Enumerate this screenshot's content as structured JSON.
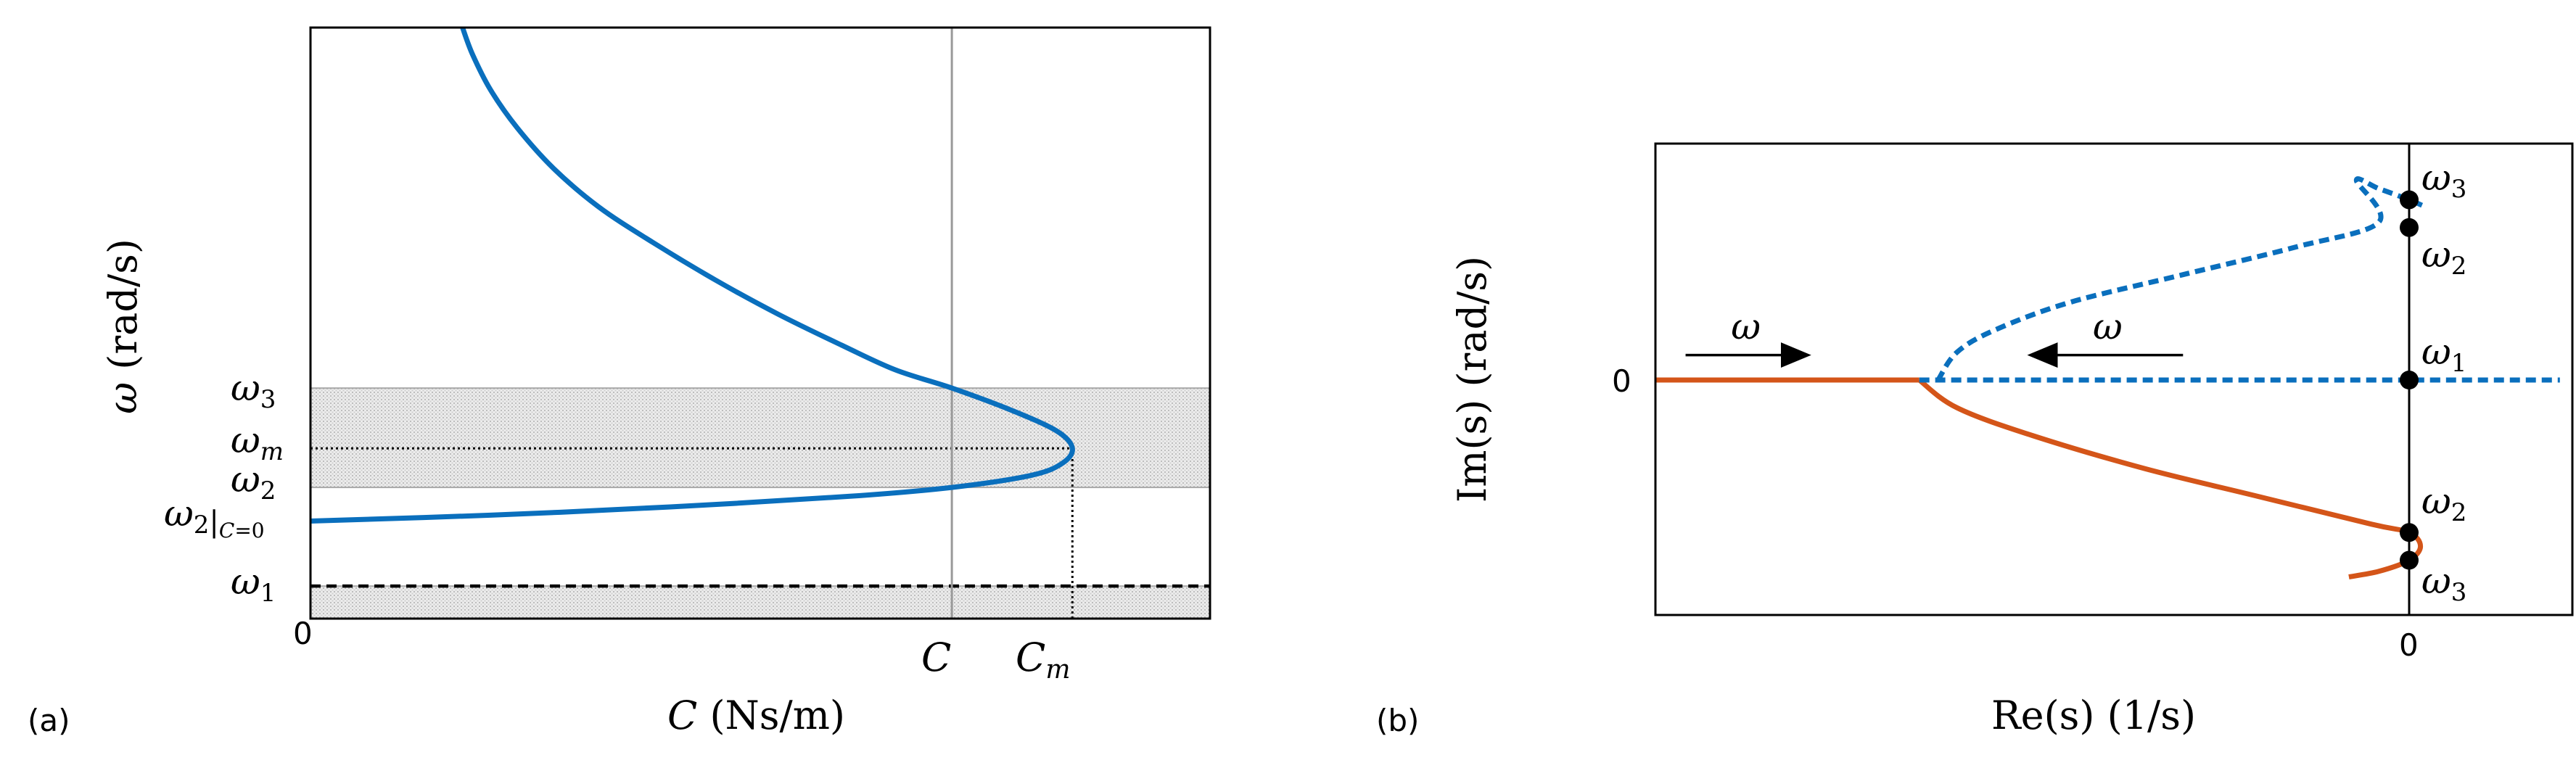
{
  "colors": {
    "blue": "#0a6fbd",
    "orange": "#d45519",
    "shade_fill": "#e6e6e6",
    "shade_border": "#a9a9a9",
    "axis": "#000000",
    "gray_line": "#9a9a9a"
  },
  "chart_data": [
    {
      "panel_label": "(a)",
      "type": "line",
      "xlabel": "C  (Ns/m)",
      "ylabel": "ω  (rad/s)",
      "x_origin_label": "0",
      "x_tick_labels": [
        "C",
        "C_m"
      ],
      "y_tick_labels": [
        "ω_3",
        "ω_m",
        "ω_2",
        "ω_2|C=0",
        "ω_1"
      ],
      "xlim": [
        0,
        1.0
      ],
      "ylim": [
        0,
        1.0
      ],
      "reference_values": {
        "C": 0.713,
        "C_m": 0.847,
        "omega_1": 0.055,
        "omega_2_C0": 0.165,
        "omega_2": 0.222,
        "omega_m": 0.288,
        "omega_3": 0.39
      },
      "shaded_bands": [
        {
          "name": "ω_2 to ω_3",
          "y_range": [
            0.222,
            0.39
          ]
        },
        {
          "name": "below ω_1",
          "y_range": [
            0.0,
            0.055
          ]
        }
      ],
      "series": [
        {
          "style": "solid",
          "color": "blue",
          "points": [
            [
              0.169,
              1.0
            ],
            [
              0.18,
              0.955
            ],
            [
              0.2,
              0.895
            ],
            [
              0.23,
              0.83
            ],
            [
              0.27,
              0.762
            ],
            [
              0.32,
              0.697
            ],
            [
              0.38,
              0.637
            ],
            [
              0.45,
              0.573
            ],
            [
              0.52,
              0.515
            ],
            [
              0.59,
              0.463
            ],
            [
              0.65,
              0.421
            ],
            [
              0.713,
              0.39
            ],
            [
              0.78,
              0.352
            ],
            [
              0.83,
              0.317
            ],
            [
              0.847,
              0.288
            ],
            [
              0.835,
              0.262
            ],
            [
              0.8,
              0.242
            ],
            [
              0.713,
              0.222
            ],
            [
              0.6,
              0.207
            ],
            [
              0.4,
              0.189
            ],
            [
              0.2,
              0.175
            ],
            [
              0.0,
              0.165
            ]
          ]
        }
      ],
      "guides": [
        {
          "kind": "horizontal-dashed",
          "y": 0.055
        },
        {
          "kind": "horizontal-dotted",
          "y": 0.288,
          "x_range": [
            0,
            0.847
          ]
        },
        {
          "kind": "vertical-dotted",
          "x": 0.847,
          "y_range": [
            0,
            0.288
          ]
        },
        {
          "kind": "vertical-solid-gray",
          "x": 0.713
        }
      ]
    },
    {
      "panel_label": "(b)",
      "type": "line",
      "xlabel": "Re(s) (1/s)",
      "ylabel": "Im(s) (rad/s)",
      "x_tick_labels": [
        "0"
      ],
      "y_tick_labels": [
        "0"
      ],
      "xlim": [
        -1.0,
        0.2
      ],
      "ylim": [
        -0.85,
        0.85
      ],
      "arrows": [
        {
          "label": "ω",
          "direction": "right",
          "x_range": [
            -0.96,
            -0.8
          ],
          "y": 0.09
        },
        {
          "label": "ω",
          "direction": "left",
          "x_range": [
            -0.3,
            -0.5
          ],
          "y": 0.09
        }
      ],
      "point_labels": [
        "ω_3",
        "ω_2",
        "ω_1",
        "ω_2",
        "ω_3"
      ],
      "marked_points": [
        [
          0,
          0.65
        ],
        [
          0,
          0.55
        ],
        [
          0,
          0.0
        ],
        [
          0,
          -0.55
        ],
        [
          0,
          -0.65
        ]
      ],
      "series": [
        {
          "style": "dashed",
          "color": "blue",
          "points": [
            [
              0.017,
              0.63
            ],
            [
              0.0,
              0.65
            ],
            [
              -0.04,
              0.69
            ],
            [
              -0.07,
              0.72
            ],
            [
              -0.04,
              0.57
            ],
            [
              -0.15,
              0.48
            ],
            [
              -0.3,
              0.38
            ],
            [
              -0.45,
              0.28
            ],
            [
              -0.55,
              0.18
            ],
            [
              -0.6,
              0.1
            ],
            [
              -0.625,
              0.0
            ]
          ]
        },
        {
          "style": "dashed",
          "color": "blue",
          "points": [
            [
              -0.65,
              0.0
            ],
            [
              0.2,
              0.0
            ]
          ]
        },
        {
          "style": "solid",
          "color": "orange",
          "points": [
            [
              -1.0,
              0.0
            ],
            [
              -0.65,
              0.0
            ]
          ]
        },
        {
          "style": "solid",
          "color": "orange",
          "points": [
            [
              -0.65,
              0.0
            ],
            [
              -0.6,
              -0.1
            ],
            [
              -0.5,
              -0.2
            ],
            [
              -0.35,
              -0.32
            ],
            [
              -0.2,
              -0.42
            ],
            [
              -0.05,
              -0.52
            ],
            [
              0.0,
              -0.55
            ],
            [
              0.015,
              -0.6
            ],
            [
              0.0,
              -0.65
            ],
            [
              -0.04,
              -0.69
            ],
            [
              -0.08,
              -0.71
            ]
          ]
        }
      ]
    }
  ]
}
